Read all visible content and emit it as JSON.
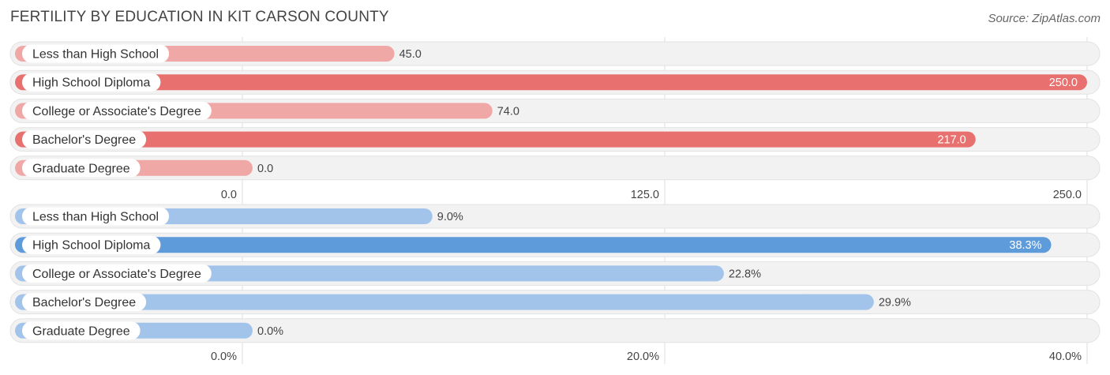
{
  "title": "FERTILITY BY EDUCATION IN KIT CARSON COUNTY",
  "source": "Source: ZipAtlas.com",
  "chart_data": [
    {
      "type": "bar",
      "orientation": "horizontal",
      "categories": [
        "Less than High School",
        "High School Diploma",
        "College or Associate's Degree",
        "Bachelor's Degree",
        "Graduate Degree"
      ],
      "values": [
        45.0,
        250.0,
        74.0,
        217.0,
        0.0
      ],
      "value_labels": [
        "45.0",
        "250.0",
        "74.0",
        "217.0",
        "0.0"
      ],
      "xlim": [
        0,
        250
      ],
      "ticks": [
        0,
        125,
        250
      ],
      "tick_labels": [
        "0.0",
        "125.0",
        "250.0"
      ],
      "colors": {
        "strong": "#e8716f",
        "light": "#f0a8a6"
      },
      "grid": true
    },
    {
      "type": "bar",
      "orientation": "horizontal",
      "categories": [
        "Less than High School",
        "High School Diploma",
        "College or Associate's Degree",
        "Bachelor's Degree",
        "Graduate Degree"
      ],
      "values": [
        9.0,
        38.3,
        22.8,
        29.9,
        0.0
      ],
      "value_labels": [
        "9.0%",
        "38.3%",
        "22.8%",
        "29.9%",
        "0.0%"
      ],
      "xlim": [
        0,
        40
      ],
      "ticks": [
        0,
        20,
        40
      ],
      "tick_labels": [
        "0.0%",
        "20.0%",
        "40.0%"
      ],
      "colors": {
        "strong": "#5d9bdb",
        "light": "#a3c4ea"
      },
      "grid": true
    }
  ]
}
